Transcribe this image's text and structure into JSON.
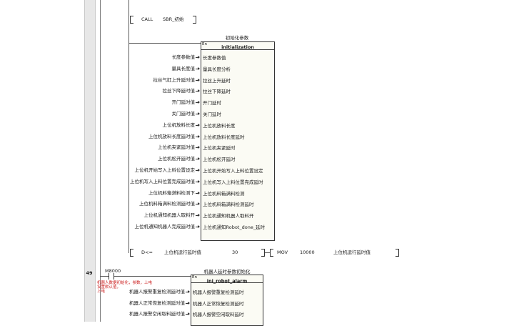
{
  "rung_top": {
    "instruction": {
      "op": "CALL",
      "operand": "SBR_初始"
    },
    "fb": {
      "title": "初始化参数",
      "en_label": "En",
      "name": "initialization",
      "inputs": [
        {
          "source": "长度参数值",
          "param": "长度参数值"
        },
        {
          "source": "量具长度值",
          "param": "量具长度分析"
        },
        {
          "source": "拉丝气缸上升延时值",
          "param": "拉丝上升延时"
        },
        {
          "source": "拉丝下降延时值",
          "param": "拉丝下降延时"
        },
        {
          "source": "开门延时值",
          "param": "开门延时"
        },
        {
          "source": "关门延时值",
          "param": "关门延时"
        },
        {
          "source": "上位机放料长度",
          "param": "上位机放料长度"
        },
        {
          "source": "上位机放料长度延时值",
          "param": "上位机放料长度延时"
        },
        {
          "source": "上位机夹紧延时值",
          "param": "上位机夹紧延时"
        },
        {
          "source": "上位机松开延时值",
          "param": "上位机松开延时"
        },
        {
          "source": "上位机开始写入上料位置设定",
          "param": "上位机开始写入上料位置设定"
        },
        {
          "source": "上位机写入上料位置完成延时值",
          "param": "上位机写入上料位置完成延时"
        },
        {
          "source": "上位机料箱满料检测下",
          "param": "上位机料箱满料检测"
        },
        {
          "source": "上位机料箱满料检测延时值",
          "param": "上位机料箱满料检测延时"
        },
        {
          "source": "上位机通知机器人取料开",
          "param": "上位机通知机器人取料开"
        },
        {
          "source": "上位机通知机器人完成延时值",
          "param": "上位机通知Robot_done_延时"
        }
      ]
    },
    "bottom_compare": {
      "op": "D<=",
      "in1": "上位机运行延时值",
      "in2": "30"
    },
    "bottom_move": {
      "op": "MOV",
      "in": "10000",
      "out": "上位机运行延时值"
    }
  },
  "rung_49": {
    "number": "49",
    "contact": "M8000",
    "comment": "机器人数据初始化，参数，上电\n设置默认值，\n上电",
    "fb": {
      "title": "机器人延时参数初始化",
      "en_label": "En",
      "name": "ini_robot_alarm",
      "inputs": [
        {
          "source": "机器人报警重复检测延时值",
          "param": "机器人报警重复检测延时"
        },
        {
          "source": "机器人正常恢复检测延时值",
          "param": "机器人正常恢复检测延时"
        },
        {
          "source": "机器人报警空闲取料延时值",
          "param": "机器人报警空闲取料延时"
        }
      ]
    }
  }
}
